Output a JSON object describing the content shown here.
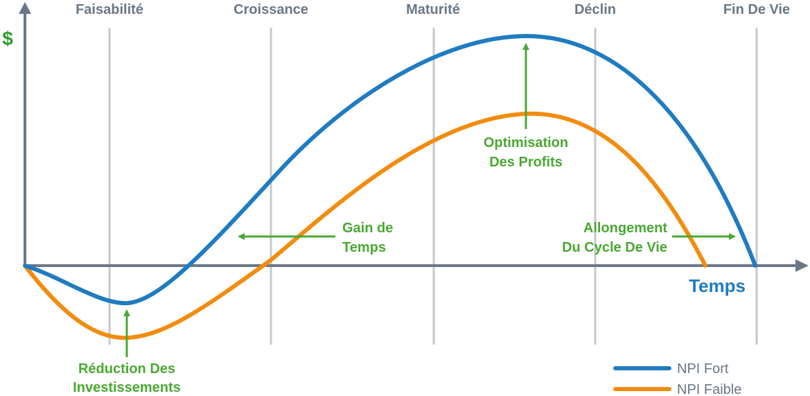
{
  "diagram": {
    "phases": [
      "Faisabilité",
      "Croissance",
      "Maturité",
      "Déclin",
      "Fin De Vie"
    ],
    "y_axis_label": "$",
    "x_axis_label": "Temps",
    "annotations": {
      "reduction": [
        "Réduction Des",
        "Investissements"
      ],
      "gain": [
        "Gain de",
        "Temps"
      ],
      "optimisation": [
        "Optimisation",
        "Des Profits"
      ],
      "allongement": [
        "Allongement",
        "Du Cycle De Vie"
      ]
    },
    "legend": [
      {
        "label": "NPI Fort",
        "color": "#1f7cc1"
      },
      {
        "label": "NPI Faible",
        "color": "#f28c0f"
      }
    ],
    "colors": {
      "axis": "#6b7787",
      "gridline": "#c4c8ce",
      "annotation": "#4aa832",
      "npi_fort": "#1f7cc1",
      "npi_faible": "#f28c0f"
    }
  }
}
